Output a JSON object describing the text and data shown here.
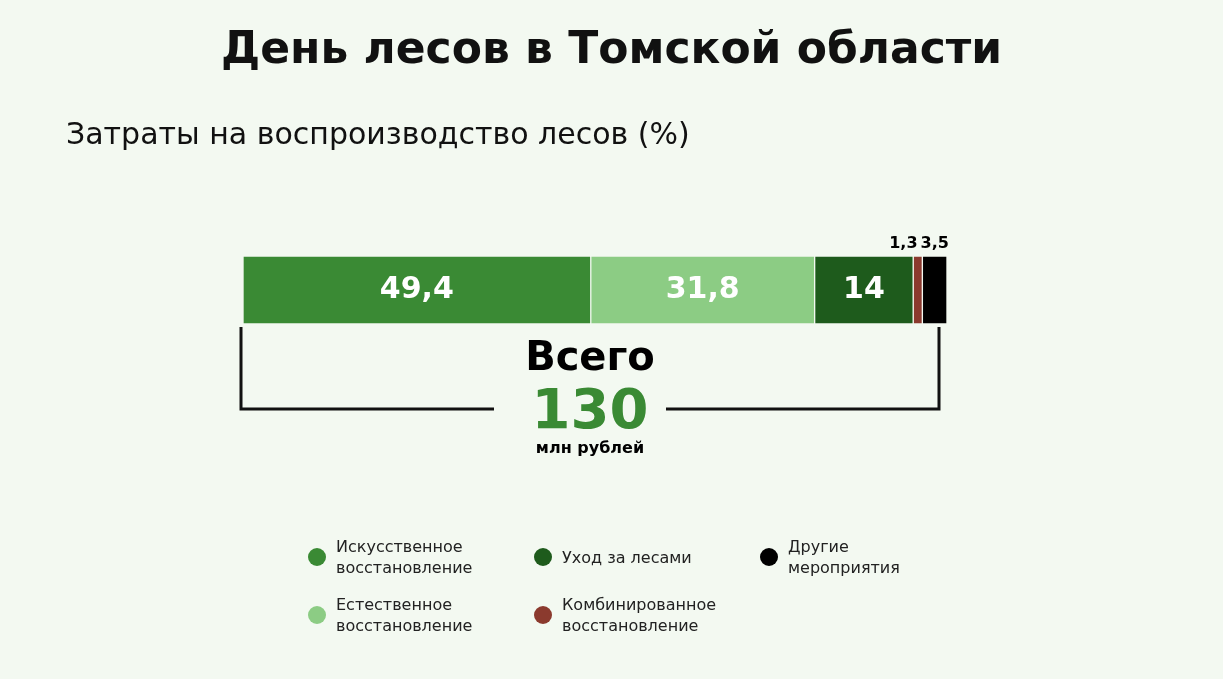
{
  "chart_data": {
    "type": "bar",
    "title": "День лесов в Томской области",
    "subtitle": "Затраты на воспроизводство лесов (%)",
    "orientation": "horizontal",
    "stacked": true,
    "categories": [
      null
    ],
    "xlim": [
      0,
      100
    ],
    "tick_labels": false,
    "legend": "bottom",
    "series": [
      {
        "name": "Искусственное восстановление",
        "color": "#3a8a34",
        "values": [
          49.4
        ],
        "value_labels": [
          "49,4"
        ]
      },
      {
        "name": "Естественное восстановление",
        "color": "#8ccc84",
        "values": [
          31.8
        ],
        "value_labels": [
          "31,8"
        ]
      },
      {
        "name": "Уход за лесами",
        "color": "#1e5b1c",
        "values": [
          14
        ],
        "value_labels": [
          "14"
        ]
      },
      {
        "name": "Комбинированное восстановление",
        "color": "#8b3a2e",
        "values": [
          1.3
        ],
        "value_labels": [
          "1,3"
        ]
      },
      {
        "name": "Другие мероприятия",
        "color": "#000000",
        "values": [
          3.5
        ],
        "value_labels": [
          "3,5"
        ]
      }
    ],
    "annotations": [
      "Всего",
      "130",
      "млн рублей"
    ]
  }
}
